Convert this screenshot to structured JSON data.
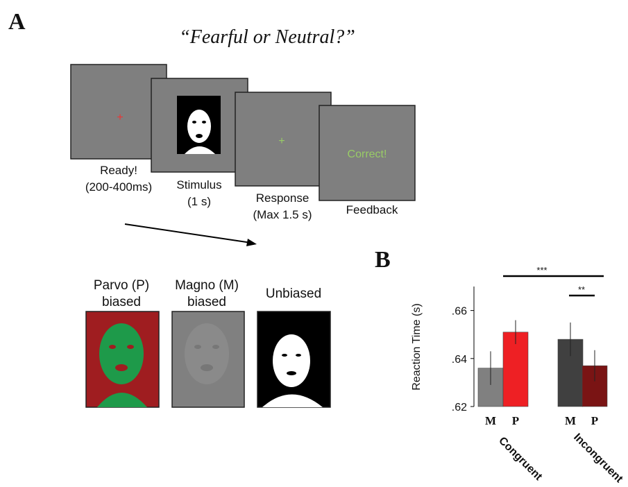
{
  "panel_a": {
    "label": "A",
    "title": "“Fearful or Neutral?”",
    "steps": [
      {
        "lines": [
          "Ready!",
          "(200-400ms)"
        ]
      },
      {
        "lines": [
          "Stimulus",
          "(1 s)"
        ]
      },
      {
        "lines": [
          "Response",
          "(Max 1.5 s)"
        ]
      },
      {
        "lines": [
          "Feedback"
        ]
      }
    ],
    "feedback_text": "Correct!",
    "conditions": [
      {
        "lines": [
          "Parvo (P)",
          "biased"
        ]
      },
      {
        "lines": [
          "Magno (M)",
          "biased"
        ]
      },
      {
        "lines": [
          "Unbiased"
        ]
      }
    ]
  },
  "chart_data": {
    "type": "bar",
    "panel_label": "B",
    "ylabel": "Reaction Time (s)",
    "categories": [
      "M",
      "P",
      "M",
      "P"
    ],
    "values": [
      0.636,
      0.651,
      0.648,
      0.637
    ],
    "errors": [
      0.007,
      0.005,
      0.007,
      0.0065
    ],
    "colors": [
      "#808080",
      "#ee2024",
      "#404040",
      "#7a1414"
    ],
    "groups": [
      "Congruent",
      "Incongruent"
    ],
    "annotations": [
      "***",
      "**"
    ],
    "ylim": [
      0.62,
      0.67
    ],
    "yticks": [
      {
        "value": 0.62,
        "label": ".62"
      },
      {
        "value": 0.64,
        "label": ".64"
      },
      {
        "value": 0.66,
        "label": ".66"
      }
    ]
  }
}
